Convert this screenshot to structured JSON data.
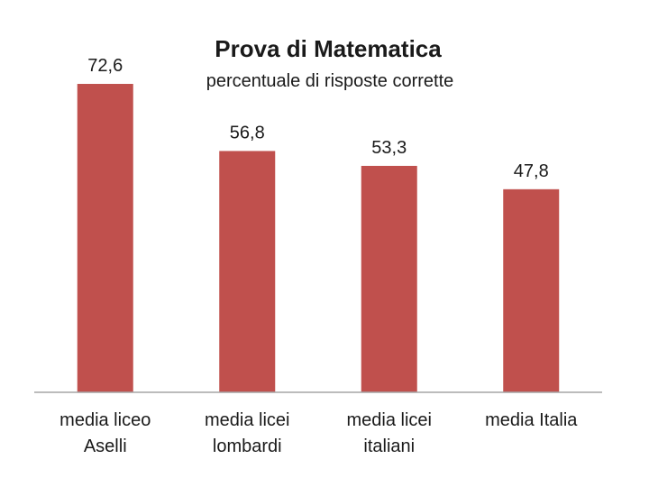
{
  "chart_data": {
    "type": "bar",
    "title": "Prova di Matematica",
    "subtitle": "percentuale di risposte corrette",
    "categories": [
      [
        "media liceo",
        "Aselli"
      ],
      [
        "media licei",
        "lombardi"
      ],
      [
        "media licei",
        "italiani"
      ],
      [
        "media Italia"
      ]
    ],
    "values": [
      72.6,
      56.8,
      53.3,
      47.8
    ],
    "value_labels": [
      "72,6",
      "56,8",
      "53,3",
      "47,8"
    ],
    "ylim": [
      0,
      76
    ],
    "grid": false,
    "legend": "none",
    "bar_color": "#c0504d",
    "axis_color": "#a6a6a6"
  }
}
